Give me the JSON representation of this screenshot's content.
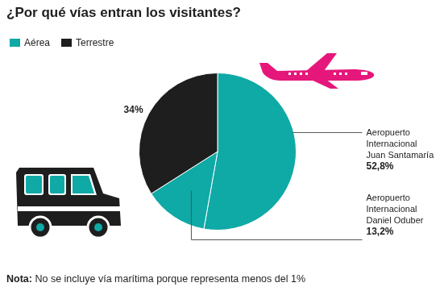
{
  "chart_data": {
    "type": "pie",
    "title": "¿Por qué vías entran los visitantes?",
    "categories": [
      "Aeropuerto Internacional Juan Santamaría",
      "Aeropuerto Internacional Daniel Oduber",
      null
    ],
    "values": [
      52.8,
      13.2,
      34
    ],
    "value_labels": [
      "52,8%",
      "13,2%",
      "34%"
    ],
    "colors": [
      "#0fa9a6",
      "#0fa9a6",
      "#1e1e1e"
    ],
    "data_labels": true,
    "legend": "top-left",
    "legend_entries": [
      {
        "name": "Aérea",
        "color": "#0fa9a6"
      },
      {
        "name": "Terrestre",
        "color": "#1e1e1e"
      }
    ],
    "note": {
      "label": "Nota:",
      "text": "No se incluye vía marítima porque representa menos del 1%"
    }
  }
}
